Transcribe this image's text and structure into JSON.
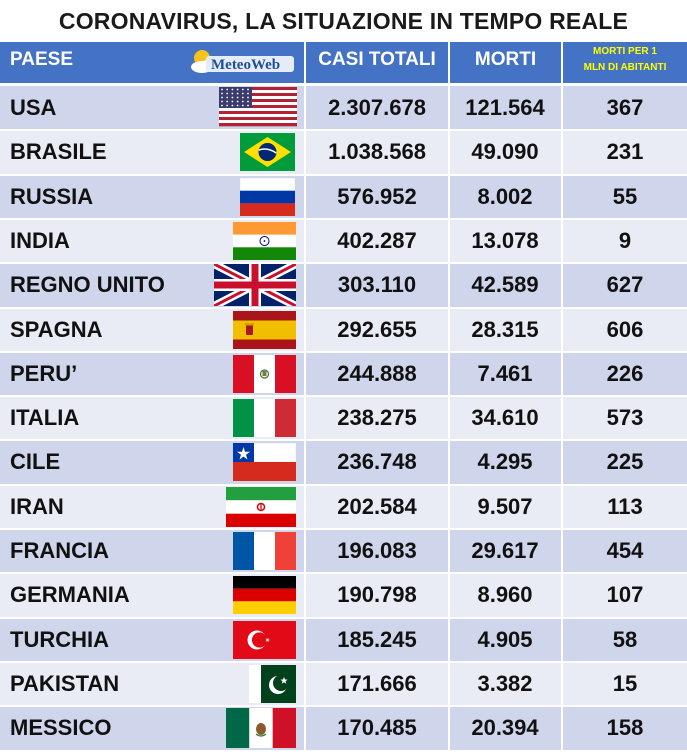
{
  "title": "CORONAVIRUS, LA SITUAZIONE IN TEMPO REALE",
  "header": {
    "country": "PAESE",
    "logo": "MeteoWeb",
    "total_cases": "CASI TOTALI",
    "deaths": "MORTI",
    "per_million_line1": "MORTI PER 1",
    "per_million_line2": "MLN DI ABITANTI"
  },
  "rows": [
    {
      "country": "USA",
      "cases": "2.307.678",
      "deaths": "121.564",
      "per_million": "367",
      "flag": "usa-flag"
    },
    {
      "country": "BRASILE",
      "cases": "1.038.568",
      "deaths": "49.090",
      "per_million": "231",
      "flag": "brazil-flag"
    },
    {
      "country": "RUSSIA",
      "cases": "576.952",
      "deaths": "8.002",
      "per_million": "55",
      "flag": "russia-flag"
    },
    {
      "country": "INDIA",
      "cases": "402.287",
      "deaths": "13.078",
      "per_million": "9",
      "flag": "india-flag"
    },
    {
      "country": "REGNO UNITO",
      "cases": "303.110",
      "deaths": "42.589",
      "per_million": "627",
      "flag": "uk-flag"
    },
    {
      "country": "SPAGNA",
      "cases": "292.655",
      "deaths": "28.315",
      "per_million": "606",
      "flag": "spain-flag"
    },
    {
      "country": "PERU’",
      "cases": "244.888",
      "deaths": "7.461",
      "per_million": "226",
      "flag": "peru-flag"
    },
    {
      "country": "ITALIA",
      "cases": "238.275",
      "deaths": "34.610",
      "per_million": "573",
      "flag": "italy-flag"
    },
    {
      "country": "CILE",
      "cases": "236.748",
      "deaths": "4.295",
      "per_million": "225",
      "flag": "chile-flag"
    },
    {
      "country": "IRAN",
      "cases": "202.584",
      "deaths": "9.507",
      "per_million": "113",
      "flag": "iran-flag"
    },
    {
      "country": "FRANCIA",
      "cases": "196.083",
      "deaths": "29.617",
      "per_million": "454",
      "flag": "france-flag"
    },
    {
      "country": "GERMANIA",
      "cases": "190.798",
      "deaths": "8.960",
      "per_million": "107",
      "flag": "germany-flag"
    },
    {
      "country": "TURCHIA",
      "cases": "185.245",
      "deaths": "4.905",
      "per_million": "58",
      "flag": "turkey-flag"
    },
    {
      "country": "PAKISTAN",
      "cases": "171.666",
      "deaths": "3.382",
      "per_million": "15",
      "flag": "pakistan-flag"
    },
    {
      "country": "MESSICO",
      "cases": "170.485",
      "deaths": "20.394",
      "per_million": "158",
      "flag": "mexico-flag"
    }
  ]
}
